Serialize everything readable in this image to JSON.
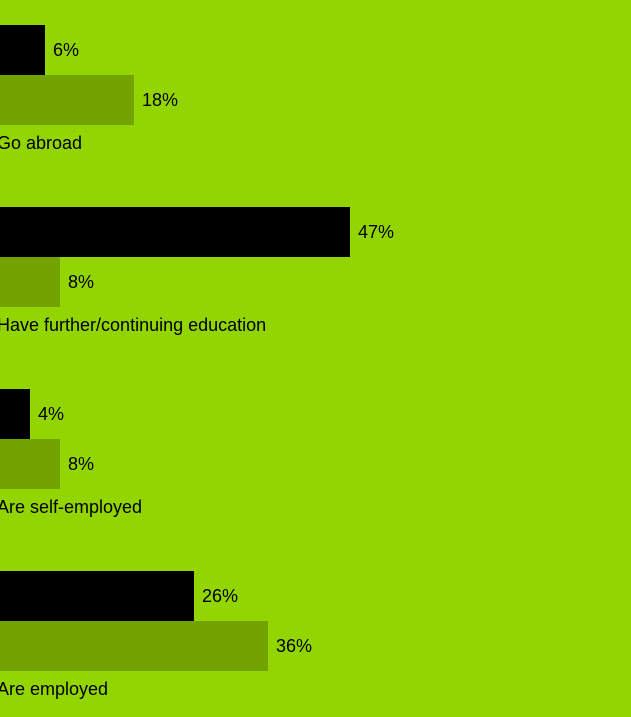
{
  "chart_data": {
    "type": "bar",
    "orientation": "horizontal",
    "categories": [
      "Go abroad",
      "Have further/continuing education",
      "Are self-employed",
      "Are employed"
    ],
    "series": [
      {
        "values": [
          6,
          47,
          4,
          26
        ],
        "labels": [
          "6%",
          "47%",
          "4%",
          "26%"
        ],
        "color": "#000000"
      },
      {
        "values": [
          18,
          8,
          8,
          36
        ],
        "labels": [
          "18%",
          "8%",
          "8%",
          "36%"
        ],
        "color": "#72A300"
      }
    ],
    "unit": "%",
    "grid": false,
    "legend": "none"
  },
  "colors": {
    "background": "#93D500",
    "series_a": "#000000",
    "series_b": "#72A300",
    "text": "#000000"
  }
}
